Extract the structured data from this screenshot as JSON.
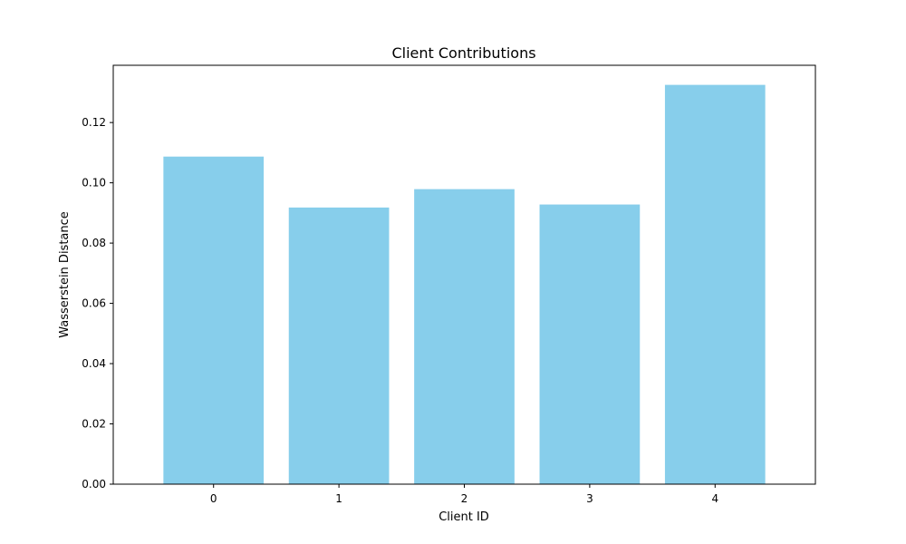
{
  "chart_data": {
    "type": "bar",
    "title": "Client Contributions",
    "xlabel": "Client ID",
    "ylabel": "Wasserstein Distance",
    "categories": [
      "0",
      "1",
      "2",
      "3",
      "4"
    ],
    "values": [
      0.1087,
      0.0918,
      0.0979,
      0.0928,
      0.1325
    ],
    "ylim": [
      0,
      0.139
    ],
    "yticks": [
      0.0,
      0.02,
      0.04,
      0.06,
      0.08,
      0.1,
      0.12
    ],
    "ytick_labels": [
      "0.00",
      "0.02",
      "0.04",
      "0.06",
      "0.08",
      "0.10",
      "0.12"
    ],
    "bar_color": "#87ceeb",
    "grid": false,
    "legend": "none"
  }
}
